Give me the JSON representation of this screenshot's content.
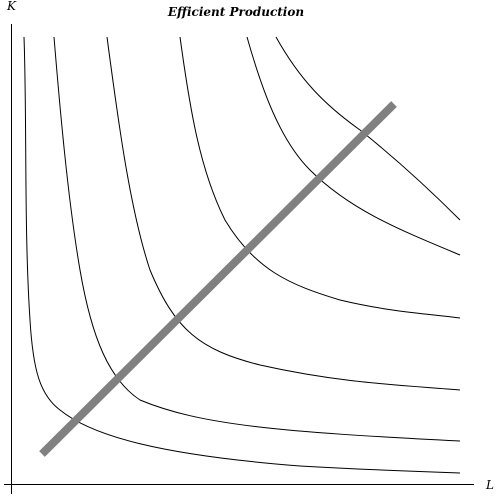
{
  "title": "Efficient Production",
  "axes": {
    "y_label": "K",
    "x_label": "L"
  },
  "colors": {
    "curve": "#000000",
    "axis": "#000000",
    "expansion_path": "#808080"
  },
  "diagram": {
    "isoquant_count": 6,
    "has_expansion_path": true
  }
}
